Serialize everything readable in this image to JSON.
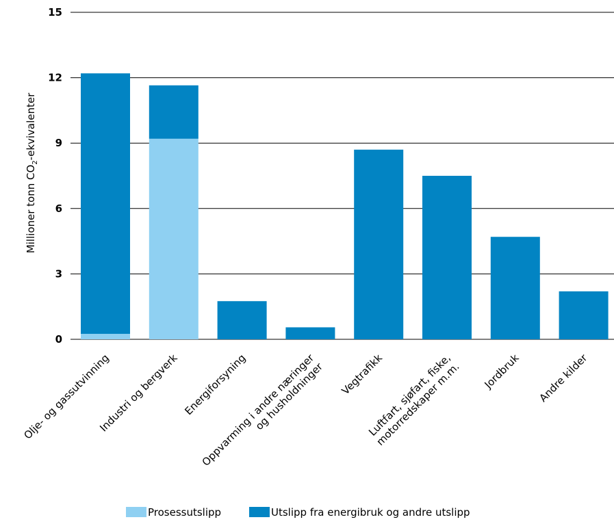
{
  "chart_data": {
    "type": "bar",
    "stacked": true,
    "ylabel": {
      "main": "Millioner tonn CO",
      "subscript": "2",
      "suffix": "-ekvivalenter"
    },
    "ylim": [
      0,
      15
    ],
    "yticks": [
      "0",
      "3",
      "6",
      "9",
      "12",
      "15"
    ],
    "grid": true,
    "legend_position": "bottom",
    "categories": [
      [
        "Olje- og gassutvinning"
      ],
      [
        "Industri og bergverk"
      ],
      [
        "Energiforsyning"
      ],
      [
        "Oppvarming i andre næringer",
        "og husholdninger"
      ],
      [
        "Vegtrafikk"
      ],
      [
        "Luftfart, sjøfart, fiske,",
        "motorredskaper m.m."
      ],
      [
        "Jordbruk"
      ],
      [
        "Andre kilder"
      ]
    ],
    "series": [
      {
        "name": "Prosessutslipp",
        "color": "#8fd0f2",
        "values": [
          0.25,
          9.2,
          0,
          0,
          0,
          0,
          0,
          0
        ]
      },
      {
        "name": "Utslipp fra energibruk og andre utslipp",
        "color": "#0284c3",
        "values": [
          11.95,
          2.45,
          1.75,
          0.55,
          8.7,
          7.5,
          4.7,
          2.2
        ]
      }
    ]
  }
}
